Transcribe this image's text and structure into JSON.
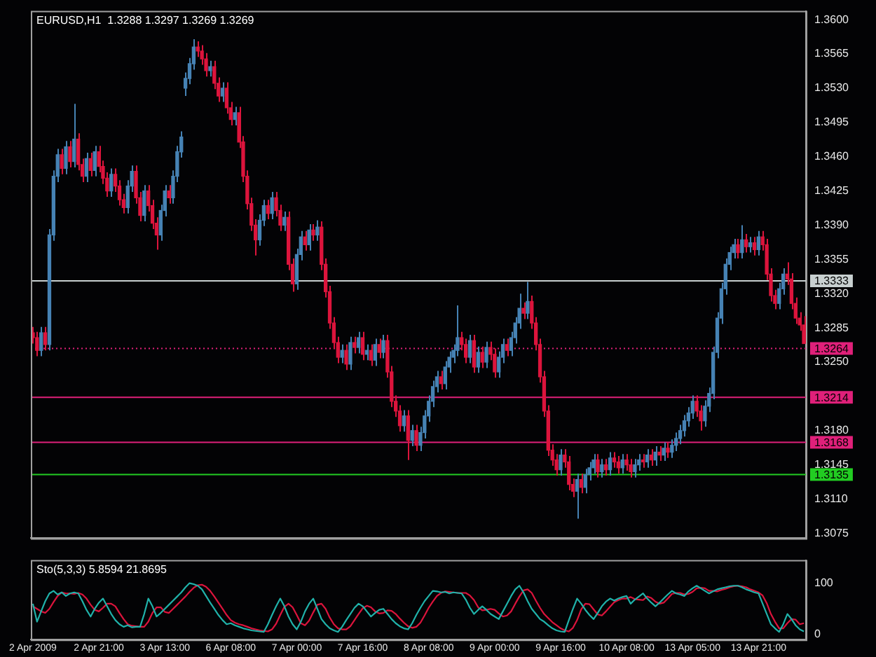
{
  "chart_data": [
    {
      "type": "candlestick",
      "title": "EURUSD,H1  1.3288 1.3297 1.3269 1.3269",
      "categories": [
        null,
        null,
        null,
        null,
        null,
        null,
        null,
        null,
        null,
        null,
        null,
        null,
        null,
        null,
        null,
        null,
        null,
        null,
        null,
        null,
        null,
        null,
        null,
        null,
        null,
        null,
        null,
        null,
        null,
        null,
        null,
        null,
        null,
        null,
        null,
        null,
        null,
        null,
        null,
        null,
        null,
        null,
        null,
        null,
        null,
        null,
        null,
        null,
        null,
        null,
        null,
        null,
        null,
        null,
        null,
        null,
        null,
        null,
        null,
        null,
        null,
        null,
        null,
        null,
        null,
        null,
        null,
        null,
        null,
        null,
        null,
        null,
        null,
        null,
        null,
        null,
        null,
        null,
        null,
        null,
        null,
        null,
        null,
        null,
        null,
        null,
        null,
        null,
        null,
        null,
        null,
        null,
        null,
        null,
        null,
        null,
        null,
        null,
        null,
        null,
        null,
        null,
        null,
        null,
        null,
        null,
        null,
        null,
        null,
        null,
        null,
        null,
        null,
        null,
        null,
        null,
        null,
        null,
        null,
        null,
        null,
        null,
        null,
        null,
        null,
        null,
        null,
        null,
        null,
        null,
        null,
        null,
        null,
        null,
        null,
        null,
        null,
        null,
        null,
        null,
        null,
        null,
        null,
        null,
        null,
        null,
        null,
        null,
        null,
        null,
        null,
        null,
        null,
        null,
        null,
        null,
        null,
        null,
        null,
        null,
        null,
        null,
        null,
        null,
        null,
        null,
        null,
        null,
        null,
        null,
        null,
        null,
        null,
        null,
        null,
        null,
        null,
        null,
        null,
        null,
        null,
        null,
        null,
        null,
        null,
        null,
        null,
        null
      ],
      "colors": [
        "#dc143c",
        "#dc143c",
        "#4682b4",
        "#dc143c",
        "#4682b4",
        "#4682b4",
        "#4682b4",
        "#dc143c",
        "#4682b4",
        "#dc143c",
        "#4682b4",
        "#dc143c",
        "#dc143c",
        "#4682b4",
        "#dc143c",
        "#4682b4",
        "#dc143c",
        "#dc143c",
        "#dc143c",
        "#4682b4",
        "#dc143c",
        "#dc143c",
        "#dc143c",
        "#4682b4",
        "#4682b4",
        "#dc143c",
        "#dc143c",
        "#4682b4",
        "#dc143c",
        "#dc143c",
        "#dc143c",
        "#4682b4",
        "#4682b4",
        "#dc143c",
        "#4682b4",
        "#4682b4",
        "#4682b4",
        "#4682b4",
        "#4682b4",
        "#4682b4",
        "#dc143c",
        "#dc143c",
        "#dc143c",
        "#4682b4",
        "#dc143c",
        "#dc143c",
        "#4682b4",
        "#dc143c",
        "#dc143c",
        "#4682b4",
        "#dc143c",
        "#dc143c",
        "#dc143c",
        "#dc143c",
        "#dc143c",
        "#4682b4",
        "#4682b4",
        "#dc143c",
        "#4682b4",
        "#dc143c",
        "#dc143c",
        "#4682b4",
        "#dc143c",
        "#dc143c",
        "#4682b4",
        "#4682b4",
        "#dc143c",
        "#4682b4",
        "#dc143c",
        "#4682b4",
        "#dc143c",
        "#dc143c",
        "#dc143c",
        "#dc143c",
        "#dc143c",
        "#4682b4",
        "#dc143c",
        "#4682b4",
        "#dc143c",
        "#4682b4",
        "#dc143c",
        "#4682b4",
        "#dc143c",
        "#4682b4",
        "#dc143c",
        "#4682b4",
        "#dc143c",
        "#dc143c",
        "#dc143c",
        "#dc143c",
        "#4682b4",
        "#dc143c",
        "#4682b4",
        "#dc143c",
        "#4682b4",
        "#4682b4",
        "#4682b4",
        "#4682b4",
        "#4682b4",
        "#dc143c",
        "#4682b4",
        "#4682b4",
        "#4682b4",
        "#4682b4",
        "#dc143c",
        "#dc143c",
        "#4682b4",
        "#dc143c",
        "#4682b4",
        "#dc143c",
        "#4682b4",
        "#dc143c",
        "#dc143c",
        "#4682b4",
        "#4682b4",
        "#dc143c",
        "#4682b4",
        "#4682b4",
        "#4682b4",
        "#dc143c",
        "#4682b4",
        "#dc143c",
        "#dc143c",
        "#dc143c",
        "#dc143c",
        "#dc143c",
        "#dc143c",
        "#dc143c",
        "#4682b4",
        "#dc143c",
        "#dc143c",
        "#dc143c",
        "#4682b4",
        "#dc143c",
        "#4682b4",
        "#4682b4",
        "#4682b4",
        "#dc143c",
        "#4682b4",
        "#dc143c",
        "#4682b4",
        "#dc143c",
        "#dc143c",
        "#4682b4",
        "#dc143c",
        "#dc143c",
        "#4682b4",
        "#4682b4",
        "#dc143c",
        "#4682b4",
        "#dc143c",
        "#4682b4",
        "#dc143c",
        "#4682b4",
        "#dc143c",
        "#4682b4",
        "#4682b4",
        "#4682b4",
        "#4682b4",
        "#4682b4",
        "#4682b4",
        "#dc143c",
        "#dc143c",
        "#4682b4",
        "#4682b4",
        "#4682b4",
        "#4682b4",
        "#4682b4",
        "#4682b4",
        "#4682b4",
        "#4682b4",
        "#dc143c",
        "#4682b4",
        "#dc143c",
        "#4682b4",
        "#dc143c",
        "#4682b4",
        "#dc143c",
        "#dc143c",
        "#dc143c",
        "#dc143c",
        "#4682b4",
        "#4682b4",
        "#dc143c",
        "#dc143c",
        "#dc143c",
        "#dc143c",
        "#dc143c"
      ],
      "ohlc": [
        [
          1.328,
          1.3286,
          1.3269,
          1.3275
        ],
        [
          1.3275,
          1.3281,
          1.3256,
          1.3262
        ],
        [
          1.3262,
          1.3286,
          1.3256,
          1.328
        ],
        [
          1.328,
          1.3286,
          1.3262,
          1.3268
        ],
        [
          1.3268,
          1.3386,
          1.3262,
          1.338
        ],
        [
          1.338,
          1.3446,
          1.3374,
          1.344
        ],
        [
          1.344,
          1.3468,
          1.3434,
          1.3462
        ],
        [
          1.3462,
          1.3468,
          1.3442,
          1.3448
        ],
        [
          1.3448,
          1.3476,
          1.3442,
          1.347
        ],
        [
          1.347,
          1.3476,
          1.3449,
          1.3455
        ],
        [
          1.3455,
          1.3514,
          1.3449,
          1.3478
        ],
        [
          1.3478,
          1.3484,
          1.3446,
          1.3452
        ],
        [
          1.3452,
          1.3458,
          1.3434,
          1.344
        ],
        [
          1.344,
          1.3464,
          1.3434,
          1.3458
        ],
        [
          1.3458,
          1.3464,
          1.344,
          1.3446
        ],
        [
          1.3446,
          1.3471,
          1.344,
          1.3465
        ],
        [
          1.3465,
          1.3471,
          1.3444,
          1.345
        ],
        [
          1.345,
          1.3456,
          1.3432,
          1.3438
        ],
        [
          1.3438,
          1.3444,
          1.3419,
          1.3425
        ],
        [
          1.3425,
          1.3448,
          1.3419,
          1.3442
        ],
        [
          1.3442,
          1.3448,
          1.3424,
          1.343
        ],
        [
          1.343,
          1.3436,
          1.341,
          1.3416
        ],
        [
          1.3416,
          1.3422,
          1.3402,
          1.3408
        ],
        [
          1.3408,
          1.3436,
          1.3402,
          1.343
        ],
        [
          1.343,
          1.3451,
          1.3424,
          1.3445
        ],
        [
          1.3445,
          1.3451,
          1.3412,
          1.3418
        ],
        [
          1.3418,
          1.3424,
          1.3394,
          1.34
        ],
        [
          1.34,
          1.3431,
          1.3394,
          1.3425
        ],
        [
          1.3425,
          1.3431,
          1.3404,
          1.341
        ],
        [
          1.341,
          1.3416,
          1.3386,
          1.3392
        ],
        [
          1.3392,
          1.3398,
          1.3365,
          1.338
        ],
        [
          1.338,
          1.3411,
          1.3374,
          1.3405
        ],
        [
          1.3405,
          1.3431,
          1.3399,
          1.3425
        ],
        [
          1.3425,
          1.3431,
          1.3412,
          1.3418
        ],
        [
          1.3418,
          1.3446,
          1.3412,
          1.344
        ],
        [
          1.344,
          1.3471,
          1.3434,
          1.3465
        ],
        [
          1.3465,
          1.3486,
          1.3459,
          1.348
        ],
        [
          1.353,
          1.3546,
          1.3522,
          1.354
        ],
        [
          1.354,
          1.3561,
          1.3534,
          1.3555
        ],
        [
          1.3555,
          1.358,
          1.3549,
          1.3572
        ],
        [
          1.3572,
          1.3578,
          1.3562,
          1.3568
        ],
        [
          1.3568,
          1.3574,
          1.3554,
          1.356
        ],
        [
          1.356,
          1.3566,
          1.3542,
          1.3548
        ],
        [
          1.3548,
          1.3558,
          1.3542,
          1.3552
        ],
        [
          1.3552,
          1.3558,
          1.3529,
          1.3535
        ],
        [
          1.3535,
          1.3541,
          1.3516,
          1.3522
        ],
        [
          1.3522,
          1.3536,
          1.3516,
          1.353
        ],
        [
          1.353,
          1.3536,
          1.3504,
          1.351
        ],
        [
          1.351,
          1.3516,
          1.3492,
          1.3498
        ],
        [
          1.3498,
          1.3511,
          1.3492,
          1.3505
        ],
        [
          1.3505,
          1.3511,
          1.3469,
          1.3475
        ],
        [
          1.3475,
          1.3481,
          1.3434,
          1.344
        ],
        [
          1.344,
          1.3446,
          1.3406,
          1.3412
        ],
        [
          1.3412,
          1.3418,
          1.3384,
          1.339
        ],
        [
          1.339,
          1.3396,
          1.3359,
          1.3375
        ],
        [
          1.3375,
          1.3401,
          1.3369,
          1.3395
        ],
        [
          1.3395,
          1.3416,
          1.3389,
          1.341
        ],
        [
          1.341,
          1.3416,
          1.3396,
          1.3402
        ],
        [
          1.3402,
          1.3424,
          1.3396,
          1.3418
        ],
        [
          1.3418,
          1.3424,
          1.3399,
          1.3405
        ],
        [
          1.3405,
          1.3411,
          1.3384,
          1.339
        ],
        [
          1.339,
          1.3404,
          1.3384,
          1.3398
        ],
        [
          1.3398,
          1.3404,
          1.3344,
          1.335
        ],
        [
          1.335,
          1.3356,
          1.3322,
          1.333
        ],
        [
          1.333,
          1.3366,
          1.3324,
          1.336
        ],
        [
          1.336,
          1.3384,
          1.3354,
          1.3378
        ],
        [
          1.3378,
          1.3384,
          1.3364,
          1.337
        ],
        [
          1.337,
          1.3391,
          1.3364,
          1.3385
        ],
        [
          1.3385,
          1.3391,
          1.3374,
          1.338
        ],
        [
          1.338,
          1.3395,
          1.3374,
          1.3388
        ],
        [
          1.3388,
          1.3394,
          1.3344,
          1.335
        ],
        [
          1.335,
          1.3356,
          1.3316,
          1.3322
        ],
        [
          1.3322,
          1.3328,
          1.3284,
          1.329
        ],
        [
          1.329,
          1.3296,
          1.3264,
          1.327
        ],
        [
          1.327,
          1.3276,
          1.3249,
          1.3255
        ],
        [
          1.3255,
          1.3268,
          1.3249,
          1.3262
        ],
        [
          1.3262,
          1.3268,
          1.3242,
          1.3248
        ],
        [
          1.3248,
          1.3276,
          1.3242,
          1.327
        ],
        [
          1.327,
          1.3276,
          1.3259,
          1.3265
        ],
        [
          1.3265,
          1.3281,
          1.3259,
          1.3275
        ],
        [
          1.3275,
          1.3281,
          1.3252,
          1.3258
        ],
        [
          1.3258,
          1.3268,
          1.3252,
          1.3262
        ],
        [
          1.3262,
          1.3268,
          1.3246,
          1.3252
        ],
        [
          1.3252,
          1.3274,
          1.3246,
          1.3268
        ],
        [
          1.3268,
          1.3274,
          1.3254,
          1.326
        ],
        [
          1.326,
          1.3278,
          1.3254,
          1.3272
        ],
        [
          1.3272,
          1.3278,
          1.3234,
          1.324
        ],
        [
          1.324,
          1.3246,
          1.3204,
          1.321
        ],
        [
          1.321,
          1.3216,
          1.3194,
          1.32
        ],
        [
          1.32,
          1.3206,
          1.3179,
          1.3185
        ],
        [
          1.3185,
          1.3201,
          1.3179,
          1.3195
        ],
        [
          1.3195,
          1.3201,
          1.315,
          1.317
        ],
        [
          1.317,
          1.3186,
          1.3164,
          1.318
        ],
        [
          1.318,
          1.3186,
          1.3159,
          1.3165
        ],
        [
          1.3165,
          1.3184,
          1.3159,
          1.3178
        ],
        [
          1.3178,
          1.3201,
          1.3172,
          1.3195
        ],
        [
          1.3195,
          1.3216,
          1.3189,
          1.321
        ],
        [
          1.321,
          1.3231,
          1.3204,
          1.3225
        ],
        [
          1.3225,
          1.3241,
          1.3219,
          1.3235
        ],
        [
          1.3235,
          1.3241,
          1.3222,
          1.3228
        ],
        [
          1.3228,
          1.3251,
          1.3222,
          1.3245
        ],
        [
          1.3245,
          1.3261,
          1.3239,
          1.3255
        ],
        [
          1.3255,
          1.3268,
          1.3249,
          1.3262
        ],
        [
          1.3262,
          1.3308,
          1.3256,
          1.3275
        ],
        [
          1.3275,
          1.3281,
          1.3262,
          1.3268
        ],
        [
          1.3268,
          1.3274,
          1.3249,
          1.3255
        ],
        [
          1.3255,
          1.3278,
          1.3249,
          1.3272
        ],
        [
          1.3272,
          1.3278,
          1.3239,
          1.3245
        ],
        [
          1.3245,
          1.3266,
          1.3239,
          1.326
        ],
        [
          1.326,
          1.3266,
          1.3244,
          1.325
        ],
        [
          1.325,
          1.3271,
          1.3244,
          1.3265
        ],
        [
          1.3265,
          1.3271,
          1.3252,
          1.3258
        ],
        [
          1.3258,
          1.3264,
          1.3234,
          1.324
        ],
        [
          1.324,
          1.3261,
          1.3234,
          1.3255
        ],
        [
          1.3255,
          1.3274,
          1.3249,
          1.3268
        ],
        [
          1.3268,
          1.3274,
          1.3256,
          1.3262
        ],
        [
          1.3262,
          1.3281,
          1.3256,
          1.3275
        ],
        [
          1.3275,
          1.3296,
          1.3269,
          1.329
        ],
        [
          1.329,
          1.332,
          1.3284,
          1.3305
        ],
        [
          1.3305,
          1.3311,
          1.3294,
          1.33
        ],
        [
          1.33,
          1.3332,
          1.3294,
          1.3312
        ],
        [
          1.3312,
          1.3318,
          1.3284,
          1.329
        ],
        [
          1.329,
          1.3296,
          1.3262,
          1.3268
        ],
        [
          1.3268,
          1.3274,
          1.3229,
          1.3235
        ],
        [
          1.3235,
          1.3241,
          1.3194,
          1.32
        ],
        [
          1.32,
          1.3206,
          1.3154,
          1.316
        ],
        [
          1.316,
          1.3166,
          1.3144,
          1.315
        ],
        [
          1.315,
          1.3156,
          1.3134,
          1.314
        ],
        [
          1.314,
          1.3161,
          1.3134,
          1.3155
        ],
        [
          1.3155,
          1.3161,
          1.3142,
          1.3148
        ],
        [
          1.3148,
          1.3154,
          1.3119,
          1.3125
        ],
        [
          1.3125,
          1.3131,
          1.3112,
          1.3118
        ],
        [
          1.3118,
          1.3136,
          1.309,
          1.313
        ],
        [
          1.313,
          1.3136,
          1.3116,
          1.3122
        ],
        [
          1.3122,
          1.3141,
          1.3116,
          1.3135
        ],
        [
          1.3135,
          1.3148,
          1.3129,
          1.3142
        ],
        [
          1.3142,
          1.3156,
          1.3136,
          1.315
        ],
        [
          1.315,
          1.3156,
          1.3132,
          1.3138
        ],
        [
          1.3138,
          1.3151,
          1.3132,
          1.3145
        ],
        [
          1.3145,
          1.3151,
          1.3134,
          1.314
        ],
        [
          1.314,
          1.3158,
          1.3134,
          1.3152
        ],
        [
          1.3152,
          1.3158,
          1.3142,
          1.3148
        ],
        [
          1.3148,
          1.3154,
          1.3136,
          1.3142
        ],
        [
          1.3142,
          1.3156,
          1.3136,
          1.315
        ],
        [
          1.315,
          1.3156,
          1.3139,
          1.3145
        ],
        [
          1.3145,
          1.3151,
          1.3132,
          1.3138
        ],
        [
          1.3138,
          1.3151,
          1.3132,
          1.3145
        ],
        [
          1.3145,
          1.3156,
          1.3139,
          1.315
        ],
        [
          1.315,
          1.3156,
          1.3142,
          1.3148
        ],
        [
          1.3148,
          1.3161,
          1.3142,
          1.3155
        ],
        [
          1.3155,
          1.3161,
          1.3144,
          1.315
        ],
        [
          1.315,
          1.3164,
          1.3144,
          1.3158
        ],
        [
          1.3158,
          1.3164,
          1.3149,
          1.3155
        ],
        [
          1.3155,
          1.3168,
          1.3149,
          1.3162
        ],
        [
          1.3162,
          1.3168,
          1.3152,
          1.3158
        ],
        [
          1.3158,
          1.3171,
          1.3152,
          1.3165
        ],
        [
          1.3165,
          1.3178,
          1.3159,
          1.3172
        ],
        [
          1.3172,
          1.3186,
          1.3166,
          1.318
        ],
        [
          1.318,
          1.3196,
          1.3174,
          1.319
        ],
        [
          1.319,
          1.3204,
          1.3184,
          1.3198
        ],
        [
          1.3198,
          1.3216,
          1.3192,
          1.321
        ],
        [
          1.321,
          1.3216,
          1.3194,
          1.32
        ],
        [
          1.32,
          1.3206,
          1.318,
          1.319
        ],
        [
          1.319,
          1.3211,
          1.3184,
          1.3205
        ],
        [
          1.3205,
          1.3224,
          1.3199,
          1.3218
        ],
        [
          1.3218,
          1.3266,
          1.3212,
          1.326
        ],
        [
          1.326,
          1.3301,
          1.3254,
          1.3295
        ],
        [
          1.3295,
          1.3331,
          1.3289,
          1.3325
        ],
        [
          1.3325,
          1.3356,
          1.3319,
          1.335
        ],
        [
          1.335,
          1.3368,
          1.3344,
          1.3362
        ],
        [
          1.3362,
          1.3376,
          1.3356,
          1.337
        ],
        [
          1.337,
          1.3376,
          1.3356,
          1.3362
        ],
        [
          1.3362,
          1.339,
          1.3356,
          1.3375
        ],
        [
          1.3375,
          1.3381,
          1.3362,
          1.3368
        ],
        [
          1.3368,
          1.3378,
          1.3362,
          1.3372
        ],
        [
          1.3372,
          1.3378,
          1.3359,
          1.3365
        ],
        [
          1.3365,
          1.3384,
          1.3359,
          1.3378
        ],
        [
          1.3378,
          1.3384,
          1.3364,
          1.337
        ],
        [
          1.337,
          1.3376,
          1.3334,
          1.334
        ],
        [
          1.334,
          1.3346,
          1.3312,
          1.3318
        ],
        [
          1.3318,
          1.3324,
          1.3304,
          1.331
        ],
        [
          1.331,
          1.3331,
          1.3304,
          1.3325
        ],
        [
          1.3325,
          1.3346,
          1.3319,
          1.334
        ],
        [
          1.334,
          1.3352,
          1.3329,
          1.3335
        ],
        [
          1.3335,
          1.3341,
          1.3304,
          1.331
        ],
        [
          1.331,
          1.3316,
          1.3289,
          1.3295
        ],
        [
          1.3295,
          1.3301,
          1.3282,
          1.3288
        ],
        [
          1.3288,
          1.3297,
          1.3269,
          1.3269
        ]
      ],
      "ylim": [
        1.307,
        1.3609
      ],
      "yticks": [
        {
          "value": 1.36,
          "label": "1.3600"
        },
        1.3565,
        {
          "value": 1.353,
          "label": "1.3530"
        },
        1.3495,
        {
          "value": 1.346,
          "label": "1.3460"
        },
        1.3425,
        {
          "value": 1.339,
          "label": "1.3390"
        },
        1.3355,
        {
          "value": 1.332,
          "label": "1.3320"
        },
        1.3285,
        {
          "value": 1.325,
          "label": "1.3250"
        },
        {
          "value": 1.3215,
          "label": null
        },
        {
          "value": 1.318,
          "label": "1.3180"
        },
        1.3145,
        {
          "value": 1.311,
          "label": "1.3110"
        },
        1.3075
      ],
      "tick_labels": "y",
      "ref_lines": [
        {
          "axis": "y",
          "value": 1.3333,
          "label": "1.3333",
          "color": "#c8d0d0"
        },
        {
          "axis": "y",
          "value": 1.3264,
          "label": "1.3264",
          "color": "#e0207a",
          "line_style": "dotted"
        },
        {
          "axis": "y",
          "value": 1.3214,
          "label": "1.3214",
          "color": "#e0207a"
        },
        {
          "axis": "y",
          "value": 1.3168,
          "label": "1.3168",
          "color": "#e0207a"
        },
        {
          "axis": "y",
          "value": 1.3135,
          "label": "1.3135",
          "color": "#22cc22"
        }
      ]
    },
    {
      "type": "line",
      "title": "Sto(5,3,3) 5.8594 21.8695",
      "categories": [
        "2 Apr 2009",
        null,
        null,
        null,
        null,
        null,
        null,
        null,
        null,
        null,
        null,
        null,
        null,
        null,
        null,
        null,
        "2 Apr 21:00",
        null,
        null,
        null,
        null,
        null,
        null,
        null,
        null,
        null,
        null,
        null,
        null,
        null,
        null,
        null,
        "3 Apr 13:00",
        null,
        null,
        null,
        null,
        null,
        null,
        null,
        null,
        null,
        null,
        null,
        null,
        null,
        null,
        null,
        "6 Apr 08:00",
        null,
        null,
        null,
        null,
        null,
        null,
        null,
        null,
        null,
        null,
        null,
        null,
        null,
        null,
        null,
        "7 Apr 00:00",
        null,
        null,
        null,
        null,
        null,
        null,
        null,
        null,
        null,
        null,
        null,
        null,
        null,
        null,
        null,
        "7 Apr 16:00",
        null,
        null,
        null,
        null,
        null,
        null,
        null,
        null,
        null,
        null,
        null,
        null,
        null,
        null,
        null,
        "8 Apr 08:00",
        null,
        null,
        null,
        null,
        null,
        null,
        null,
        null,
        null,
        null,
        null,
        null,
        null,
        null,
        null,
        "9 Apr 00:00",
        null,
        null,
        null,
        null,
        null,
        null,
        null,
        null,
        null,
        null,
        null,
        null,
        null,
        null,
        null,
        "9 Apr 16:00",
        null,
        null,
        null,
        null,
        null,
        null,
        null,
        null,
        null,
        null,
        null,
        null,
        null,
        null,
        null,
        "10 Apr 08:00",
        null,
        null,
        null,
        null,
        null,
        null,
        null,
        null,
        null,
        null,
        null,
        null,
        null,
        null,
        null,
        "13 Apr 05:00",
        null,
        null,
        null,
        null,
        null,
        null,
        null,
        null,
        null,
        null,
        null,
        null,
        null,
        null,
        null,
        "13 Apr 21:00",
        null,
        null,
        null,
        null,
        null,
        null,
        null,
        null,
        null,
        null,
        null
      ],
      "series": [
        {
          "color": "#20b2aa",
          "values": [
            60,
            25,
            45,
            65,
            80,
            85,
            78,
            82,
            75,
            80,
            82,
            80,
            65,
            48,
            35,
            50,
            62,
            70,
            55,
            40,
            28,
            20,
            15,
            18,
            14,
            15,
            15,
            40,
            70,
            55,
            35,
            42,
            50,
            58,
            66,
            74,
            82,
            92,
            100,
            98,
            95,
            88,
            75,
            62,
            50,
            38,
            28,
            20,
            22,
            18,
            15,
            12,
            10,
            8,
            7,
            6,
            5,
            20,
            38,
            55,
            70,
            55,
            35,
            20,
            10,
            25,
            45,
            60,
            70,
            50,
            30,
            20,
            12,
            8,
            5,
            15,
            28,
            40,
            52,
            60,
            55,
            45,
            35,
            42,
            48,
            50,
            40,
            30,
            22,
            16,
            12,
            10,
            22,
            38,
            52,
            65,
            75,
            85,
            84,
            82,
            83,
            80,
            82,
            81,
            80,
            68,
            52,
            40,
            48,
            55,
            48,
            40,
            35,
            30,
            45,
            60,
            75,
            88,
            95,
            82,
            65,
            50,
            40,
            30,
            25,
            18,
            12,
            8,
            6,
            5,
            28,
            50,
            70,
            60,
            48,
            38,
            30,
            42,
            55,
            64,
            70,
            66,
            70,
            73,
            75,
            60,
            68,
            74,
            80,
            70,
            62,
            55,
            62,
            70,
            78,
            85,
            80,
            78,
            75,
            84,
            90,
            95,
            90,
            85,
            80,
            84,
            88,
            90,
            92,
            94,
            95,
            95,
            92,
            88,
            85,
            82,
            80,
            60,
            40,
            20,
            12,
            5,
            20,
            40,
            30,
            18,
            10,
            6
          ]
        },
        {
          "color": "#dc143c",
          "values": [
            55,
            50,
            45,
            42,
            50,
            63,
            75,
            82,
            80,
            80,
            79,
            81,
            78,
            70,
            58,
            48,
            45,
            52,
            60,
            60,
            55,
            42,
            30,
            20,
            17,
            16,
            15,
            15,
            25,
            42,
            53,
            53,
            44,
            42,
            50,
            58,
            66,
            74,
            83,
            91,
            96,
            97,
            93,
            85,
            74,
            62,
            50,
            38,
            28,
            23,
            20,
            18,
            15,
            12,
            10,
            8,
            7,
            6,
            10,
            21,
            38,
            54,
            60,
            53,
            38,
            22,
            18,
            27,
            43,
            58,
            60,
            50,
            33,
            20,
            12,
            10,
            10,
            16,
            28,
            40,
            51,
            56,
            53,
            45,
            41,
            42,
            47,
            46,
            40,
            31,
            23,
            16,
            13,
            15,
            23,
            37,
            52,
            64,
            75,
            81,
            84,
            83,
            82,
            81,
            81,
            81,
            76,
            67,
            53,
            47,
            48,
            50,
            48,
            41,
            35,
            37,
            45,
            60,
            74,
            86,
            88,
            81,
            66,
            52,
            40,
            32,
            24,
            18,
            12,
            8,
            6,
            13,
            28,
            49,
            60,
            59,
            49,
            39,
            37,
            45,
            54,
            63,
            67,
            70,
            70,
            73,
            69,
            68,
            67,
            74,
            71,
            64,
            60,
            62,
            70,
            79,
            81,
            81,
            78,
            79,
            83,
            90,
            91,
            90,
            85,
            85,
            84,
            87,
            89,
            92,
            94,
            95,
            94,
            92,
            88,
            85,
            82,
            76,
            61,
            40,
            25,
            12,
            12,
            22,
            30,
            29,
            20,
            22
          ]
        }
      ],
      "ylim": [
        -10,
        145
      ],
      "yticks": [
        0,
        100
      ]
    }
  ]
}
